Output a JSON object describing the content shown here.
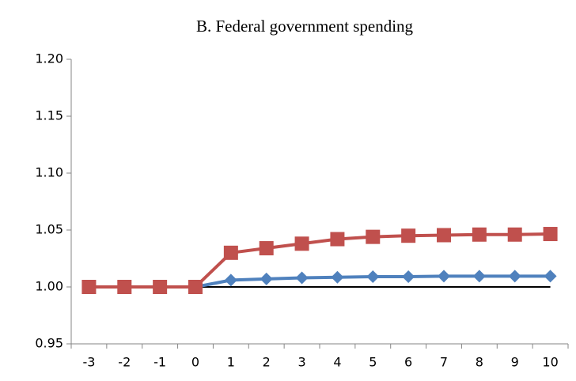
{
  "chart_data": {
    "type": "line",
    "title": "B. Federal government spending",
    "categories": [
      "-3",
      "-2",
      "-1",
      "0",
      "1",
      "2",
      "3",
      "4",
      "5",
      "6",
      "7",
      "8",
      "9",
      "10"
    ],
    "series": [
      {
        "color": "#000000",
        "marker": "none",
        "values": [
          1.0,
          1.0,
          1.0,
          1.0,
          1.0,
          1.0,
          1.0,
          1.0,
          1.0,
          1.0,
          1.0,
          1.0,
          1.0,
          1.0
        ]
      },
      {
        "color": "#4f81bd",
        "marker": "diamond",
        "values": [
          1.0,
          1.0,
          1.0,
          1.0,
          1.006,
          1.007,
          1.008,
          1.0085,
          1.009,
          1.009,
          1.0095,
          1.0095,
          1.0095,
          1.0095
        ]
      },
      {
        "color": "#c0504d",
        "marker": "square",
        "values": [
          1.0,
          1.0,
          1.0,
          1.0,
          1.03,
          1.034,
          1.038,
          1.042,
          1.044,
          1.045,
          1.0455,
          1.046,
          1.046,
          1.0465
        ]
      }
    ],
    "ylim": [
      0.95,
      1.2
    ],
    "yticks": [
      {
        "value": 0.95,
        "label": "0.95"
      },
      {
        "value": 1.0,
        "label": "1.00"
      },
      {
        "value": 1.05,
        "label": "1.05"
      },
      {
        "value": 1.1,
        "label": "1.10"
      },
      {
        "value": 1.15,
        "label": "1.15"
      },
      {
        "value": 1.2,
        "label": "1.20"
      }
    ],
    "grid": false
  }
}
